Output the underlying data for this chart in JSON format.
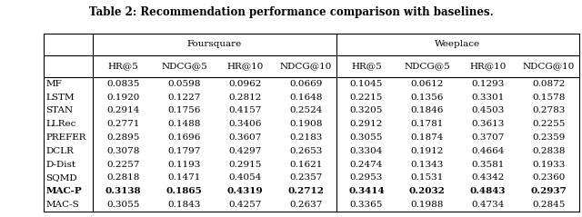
{
  "title": "Table 2: Recommendation performance comparison with baselines.",
  "col_groups": [
    "Foursquare",
    "Weeplace"
  ],
  "sub_cols": [
    "HR@5",
    "NDCG@5",
    "HR@10",
    "NDCG@10"
  ],
  "rows": [
    [
      "MF",
      "0.0835",
      "0.0598",
      "0.0962",
      "0.0669",
      "0.1045",
      "0.0612",
      "0.1293",
      "0.0872"
    ],
    [
      "LSTM",
      "0.1920",
      "0.1227",
      "0.2812",
      "0.1648",
      "0.2215",
      "0.1356",
      "0.3301",
      "0.1578"
    ],
    [
      "STAN",
      "0.2914",
      "0.1756",
      "0.4157",
      "0.2524",
      "0.3205",
      "0.1846",
      "0.4503",
      "0.2783"
    ],
    [
      "LLRec",
      "0.2771",
      "0.1488",
      "0.3406",
      "0.1908",
      "0.2912",
      "0.1781",
      "0.3613",
      "0.2255"
    ],
    [
      "PREFER",
      "0.2895",
      "0.1696",
      "0.3607",
      "0.2183",
      "0.3055",
      "0.1874",
      "0.3707",
      "0.2359"
    ],
    [
      "DCLR",
      "0.3078",
      "0.1797",
      "0.4297",
      "0.2653",
      "0.3304",
      "0.1912",
      "0.4664",
      "0.2838"
    ],
    [
      "D-Dist",
      "0.2257",
      "0.1193",
      "0.2915",
      "0.1621",
      "0.2474",
      "0.1343",
      "0.3581",
      "0.1933"
    ],
    [
      "SQMD",
      "0.2818",
      "0.1471",
      "0.4054",
      "0.2357",
      "0.2953",
      "0.1531",
      "0.4342",
      "0.2360"
    ],
    [
      "MAC-P",
      "0.3138",
      "0.1865",
      "0.4319",
      "0.2712",
      "0.3414",
      "0.2032",
      "0.4843",
      "0.2937"
    ],
    [
      "MAC-S",
      "0.3055",
      "0.1843",
      "0.4257",
      "0.2637",
      "0.3365",
      "0.1988",
      "0.4734",
      "0.2845"
    ]
  ],
  "bold_row": "MAC-P",
  "background_color": "#ffffff",
  "font_size": 7.5,
  "title_font_size": 8.5
}
